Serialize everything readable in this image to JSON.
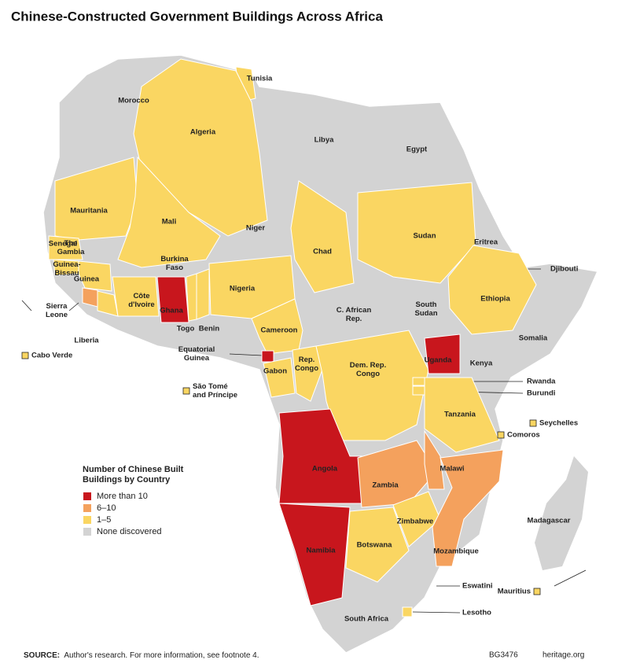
{
  "title": "Chinese-Constructed Government Buildings Across Africa",
  "legend": {
    "title": [
      "Number of Chinese Built",
      "Buildings by Country"
    ],
    "items": [
      {
        "label": "More than 10",
        "color": "#c8161d"
      },
      {
        "label": "6–10",
        "color": "#f4a15d"
      },
      {
        "label": "1–5",
        "color": "#fad662"
      },
      {
        "label": "None discovered",
        "color": "#d3d3d3"
      }
    ]
  },
  "countries": [
    {
      "name": [
        "Tunisia"
      ],
      "group": 2
    },
    {
      "name": [
        "Morocco"
      ],
      "group": 3
    },
    {
      "name": [
        "Algeria"
      ],
      "group": 2
    },
    {
      "name": [
        "Libya"
      ],
      "group": 3
    },
    {
      "name": [
        "Egypt"
      ],
      "group": 3
    },
    {
      "name": [
        "Mauritania"
      ],
      "group": 2
    },
    {
      "name": [
        "Mali"
      ],
      "group": 2
    },
    {
      "name": [
        "Niger"
      ],
      "group": 3
    },
    {
      "name": [
        "Senegal"
      ],
      "group": 2
    },
    {
      "name": [
        "The",
        "Gambia"
      ],
      "group": 2
    },
    {
      "name": [
        "Guinea-",
        "Bissau"
      ],
      "group": 2
    },
    {
      "name": [
        "Guinea"
      ],
      "group": 2
    },
    {
      "name": [
        "Sierra",
        "Leone"
      ],
      "group": 1
    },
    {
      "name": [
        "Liberia"
      ],
      "group": 2
    },
    {
      "name": [
        "Côte",
        "d'Ivoire"
      ],
      "group": 2
    },
    {
      "name": [
        "Ghana"
      ],
      "group": 0
    },
    {
      "name": [
        "Burkina",
        "Faso"
      ],
      "group": 3
    },
    {
      "name": [
        "Togo"
      ],
      "group": 2
    },
    {
      "name": [
        "Benin"
      ],
      "group": 2
    },
    {
      "name": [
        "Nigeria"
      ],
      "group": 2
    },
    {
      "name": [
        "Chad"
      ],
      "group": 2
    },
    {
      "name": [
        "Sudan"
      ],
      "group": 2
    },
    {
      "name": [
        "Eritrea"
      ],
      "group": 3
    },
    {
      "name": [
        "Djibouti"
      ],
      "group": 2
    },
    {
      "name": [
        "Ethiopia"
      ],
      "group": 2
    },
    {
      "name": [
        "C. African",
        "Rep."
      ],
      "group": 3
    },
    {
      "name": [
        "South",
        "Sudan"
      ],
      "group": 3
    },
    {
      "name": [
        "Somalia"
      ],
      "group": 3
    },
    {
      "name": [
        "Cameroon"
      ],
      "group": 2
    },
    {
      "name": [
        "Equatorial",
        "Guinea"
      ],
      "group": 0
    },
    {
      "name": [
        "Gabon"
      ],
      "group": 2
    },
    {
      "name": [
        "Rep.",
        "Congo"
      ],
      "group": 2
    },
    {
      "name": [
        "Dem. Rep.",
        "Congo"
      ],
      "group": 2
    },
    {
      "name": [
        "Uganda"
      ],
      "group": 0
    },
    {
      "name": [
        "Kenya"
      ],
      "group": 3
    },
    {
      "name": [
        "Rwanda"
      ],
      "group": 2
    },
    {
      "name": [
        "Burundi"
      ],
      "group": 2
    },
    {
      "name": [
        "Tanzania"
      ],
      "group": 2
    },
    {
      "name": [
        "Angola"
      ],
      "group": 0
    },
    {
      "name": [
        "Zambia"
      ],
      "group": 1
    },
    {
      "name": [
        "Malawi"
      ],
      "group": 1
    },
    {
      "name": [
        "Zimbabwe"
      ],
      "group": 2
    },
    {
      "name": [
        "Namibia"
      ],
      "group": 0
    },
    {
      "name": [
        "Botswana"
      ],
      "group": 2
    },
    {
      "name": [
        "Mozambique"
      ],
      "group": 1
    },
    {
      "name": [
        "Madagascar"
      ],
      "group": 3
    },
    {
      "name": [
        "Eswatini"
      ],
      "group": 3
    },
    {
      "name": [
        "Lesotho"
      ],
      "group": 2
    },
    {
      "name": [
        "South Africa"
      ],
      "group": 3
    },
    {
      "name": [
        "Cabo Verde"
      ],
      "group": 2
    },
    {
      "name": [
        "São Tomé",
        "and Príncipe"
      ],
      "group": 2
    },
    {
      "name": [
        "Comoros"
      ],
      "group": 2
    },
    {
      "name": [
        "Seychelles"
      ],
      "group": 2
    },
    {
      "name": [
        "Mauritius"
      ],
      "group": 2
    }
  ],
  "source": {
    "label": "SOURCE:",
    "text": "Author's research. For more information, see footnote 4."
  },
  "footer": {
    "code": "BG3476",
    "site": "heritage.org"
  }
}
